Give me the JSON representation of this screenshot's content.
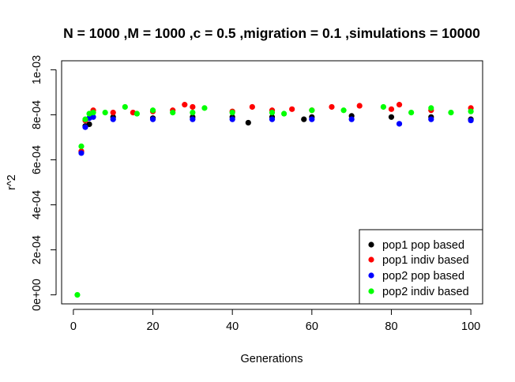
{
  "chart_data": {
    "type": "scatter",
    "title": "N = 1000 ,M = 1000 ,c = 0.5 ,migration = 0.1 ,simulations = 10000",
    "xlabel": "Generations",
    "ylabel": "r^2",
    "xlim": [
      -2.96,
      102.96
    ],
    "ylim": [
      -4e-05,
      0.00104
    ],
    "x_ticks": [
      0,
      20,
      40,
      60,
      80,
      100
    ],
    "x_tick_labels": [
      "0",
      "20",
      "40",
      "60",
      "80",
      "100"
    ],
    "y_ticks": [
      0,
      0.0002,
      0.0004,
      0.0006,
      0.0008,
      0.001
    ],
    "y_tick_labels": [
      "0e+00",
      "2e-04",
      "4e-04",
      "6e-04",
      "8e-04",
      "1e-03"
    ],
    "grid": false,
    "legend_position": "bottom-right",
    "series": [
      {
        "name": "pop1 pop based",
        "color": "#000000",
        "points": [
          [
            2,
            0.000635
          ],
          [
            3,
            0.00075
          ],
          [
            4,
            0.000758
          ],
          [
            10,
            0.00079
          ],
          [
            20,
            0.000785
          ],
          [
            30,
            0.00079
          ],
          [
            40,
            0.00079
          ],
          [
            44,
            0.000765
          ],
          [
            50,
            0.00079
          ],
          [
            58,
            0.00078
          ],
          [
            60,
            0.00079
          ],
          [
            70,
            0.000795
          ],
          [
            80,
            0.00079
          ],
          [
            90,
            0.00079
          ],
          [
            100,
            0.00078
          ]
        ]
      },
      {
        "name": "pop1 indiv based",
        "color": "#ff0000",
        "points": [
          [
            2,
            0.000638
          ],
          [
            3,
            0.000775
          ],
          [
            5,
            0.00082
          ],
          [
            10,
            0.00081
          ],
          [
            15,
            0.00081
          ],
          [
            20,
            0.000815
          ],
          [
            25,
            0.00082
          ],
          [
            28,
            0.000845
          ],
          [
            30,
            0.000835
          ],
          [
            40,
            0.000815
          ],
          [
            45,
            0.000835
          ],
          [
            50,
            0.00082
          ],
          [
            55,
            0.000825
          ],
          [
            60,
            0.00082
          ],
          [
            65,
            0.000835
          ],
          [
            72,
            0.00084
          ],
          [
            80,
            0.000825
          ],
          [
            82,
            0.000845
          ],
          [
            90,
            0.00082
          ],
          [
            100,
            0.00083
          ]
        ]
      },
      {
        "name": "pop2 pop based",
        "color": "#0000ff",
        "points": [
          [
            2,
            0.00063
          ],
          [
            3,
            0.000745
          ],
          [
            4,
            0.000785
          ],
          [
            5,
            0.00079
          ],
          [
            10,
            0.00078
          ],
          [
            20,
            0.00078
          ],
          [
            30,
            0.00078
          ],
          [
            40,
            0.00078
          ],
          [
            50,
            0.00078
          ],
          [
            60,
            0.00078
          ],
          [
            70,
            0.00078
          ],
          [
            82,
            0.00076
          ],
          [
            90,
            0.00078
          ],
          [
            100,
            0.000775
          ]
        ]
      },
      {
        "name": "pop2 indiv based",
        "color": "#00ff00",
        "points": [
          [
            1,
            0.0
          ],
          [
            2,
            0.00066
          ],
          [
            3,
            0.00078
          ],
          [
            4,
            0.000805
          ],
          [
            5,
            0.00081
          ],
          [
            8,
            0.00081
          ],
          [
            13,
            0.000835
          ],
          [
            16,
            0.000805
          ],
          [
            20,
            0.00082
          ],
          [
            25,
            0.00081
          ],
          [
            30,
            0.00081
          ],
          [
            33,
            0.00083
          ],
          [
            40,
            0.00081
          ],
          [
            50,
            0.00081
          ],
          [
            53,
            0.000805
          ],
          [
            60,
            0.00082
          ],
          [
            68,
            0.00082
          ],
          [
            78,
            0.000835
          ],
          [
            85,
            0.00081
          ],
          [
            90,
            0.00083
          ],
          [
            95,
            0.00081
          ],
          [
            100,
            0.000815
          ]
        ]
      }
    ]
  }
}
